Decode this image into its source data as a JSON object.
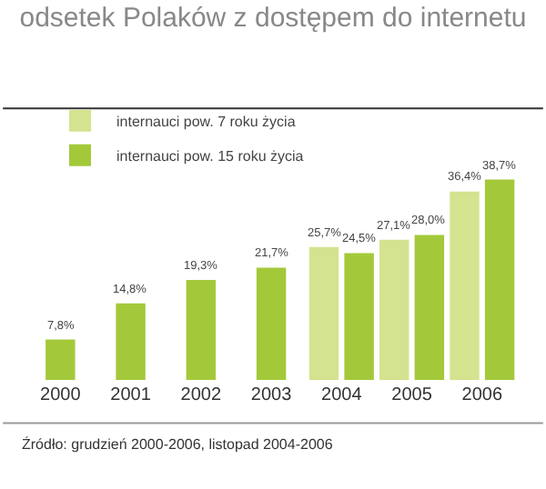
{
  "chart_data": {
    "type": "bar",
    "title": "odsetek Polaków z dostępem do internetu",
    "categories": [
      "2000",
      "2001",
      "2002",
      "2003",
      "2004",
      "2005",
      "2006"
    ],
    "series": [
      {
        "name": "internauci pow. 7 roku życia",
        "color": "#d4e38f",
        "values": [
          null,
          null,
          null,
          null,
          25.7,
          27.1,
          36.4
        ],
        "value_labels": [
          null,
          null,
          null,
          null,
          "25,7%",
          "27,1%",
          "36,4%"
        ]
      },
      {
        "name": "internauci pow. 15 roku życia",
        "color": "#a3c93a",
        "values": [
          7.8,
          14.8,
          19.3,
          21.7,
          24.5,
          28.0,
          38.7
        ],
        "value_labels": [
          "7,8%",
          "14,8%",
          "19,3%",
          "21,7%",
          "24,5%",
          "28,0%",
          "38,7%"
        ]
      }
    ],
    "legend": "top left",
    "annotations": [
      "Źródło: grudzień 2000-2006, listopad 2004-2006"
    ]
  }
}
